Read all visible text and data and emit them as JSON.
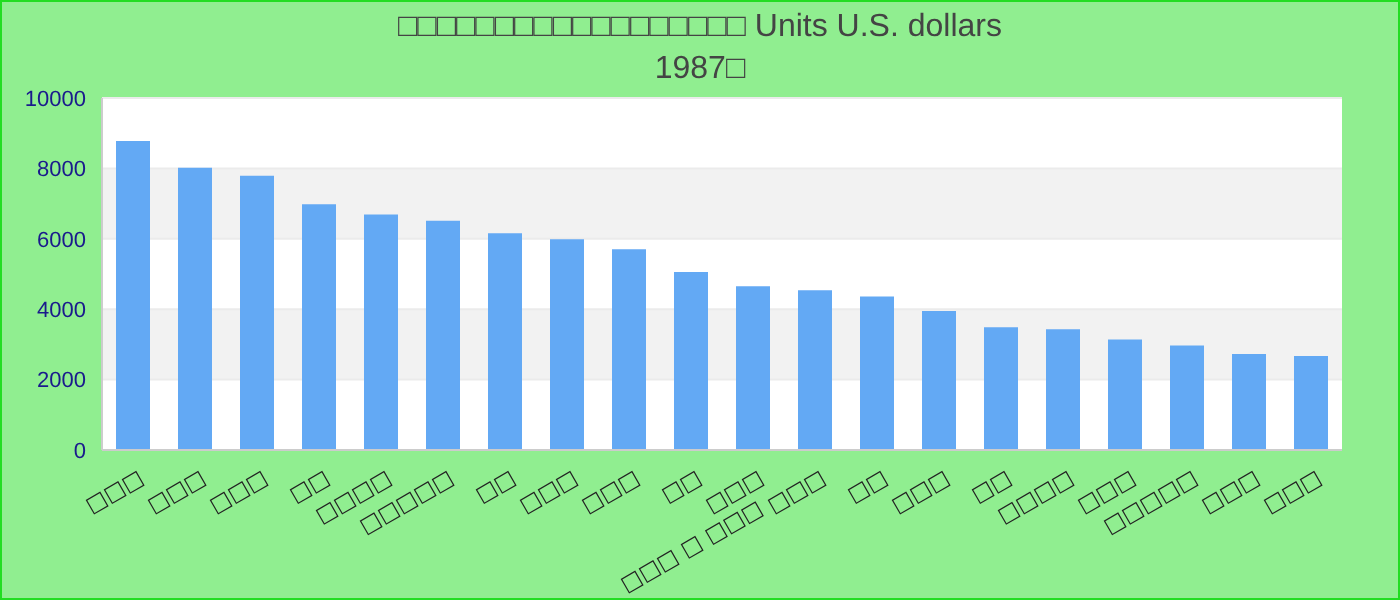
{
  "chart_data": {
    "type": "bar",
    "title": "□□□□□□□□□□□□□□□□□□ Units U.S. dollars",
    "subtitle": "1987□",
    "categories": [
      "□□□",
      "□□□",
      "□□□",
      "□□",
      "□□□□",
      "□□□□□",
      "□□",
      "□□□",
      "□□□",
      "□□",
      "□□□ □□□ □ □□□",
      "□□□",
      "□□",
      "□□□",
      "□□",
      "□□□□",
      "□□□",
      "□□□□□",
      "□□□",
      "□□□"
    ],
    "values": [
      8780,
      8020,
      7790,
      6980,
      6690,
      6510,
      6160,
      5990,
      5700,
      5060,
      4650,
      4540,
      4360,
      3950,
      3490,
      3430,
      3140,
      2970,
      2730,
      2670
    ],
    "color": "#63a9f4",
    "ylim": [
      0,
      10000
    ],
    "yticks": [
      0,
      2000,
      4000,
      6000,
      8000,
      10000
    ],
    "grid": "y",
    "legend": false
  }
}
